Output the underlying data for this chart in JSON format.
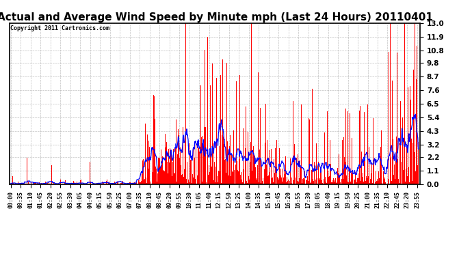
{
  "title": "Actual and Average Wind Speed by Minute mph (Last 24 Hours) 20110401",
  "copyright": "Copyright 2011 Cartronics.com",
  "yticks": [
    0.0,
    1.1,
    2.2,
    3.2,
    4.3,
    5.4,
    6.5,
    7.6,
    8.7,
    9.8,
    10.8,
    11.9,
    13.0
  ],
  "ylim": [
    0.0,
    13.0
  ],
  "bar_color": "#ff0000",
  "line_color": "#0000ff",
  "background_color": "#ffffff",
  "grid_color": "#b0b0b0",
  "title_fontsize": 11,
  "copyright_fontsize": 6,
  "xtick_fontsize": 6,
  "ytick_fontsize": 7.5,
  "xtick_interval": 35
}
